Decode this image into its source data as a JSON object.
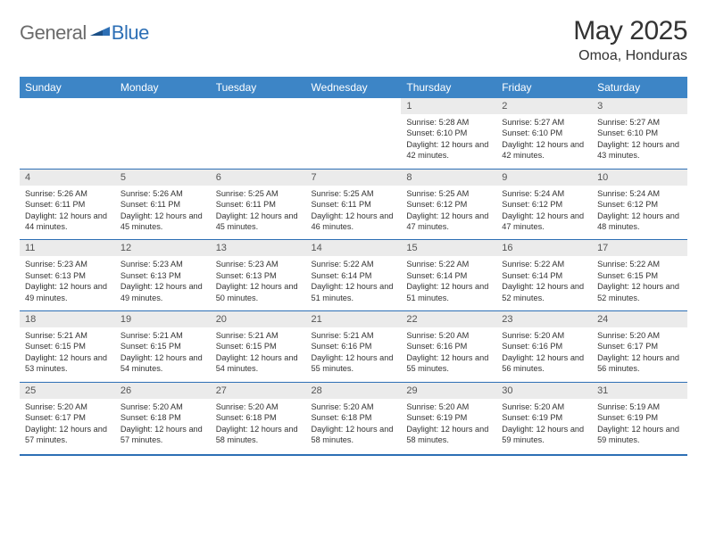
{
  "brand": {
    "part1": "General",
    "part2": "Blue"
  },
  "title": "May 2025",
  "location": "Omoa, Honduras",
  "colors": {
    "header_bg": "#3d85c6",
    "header_text": "#ffffff",
    "border": "#2d6fb5",
    "daynum_bg": "#ebebeb",
    "logo_gray": "#6b6b6b",
    "logo_blue": "#2d6fb5"
  },
  "weekdays": [
    "Sunday",
    "Monday",
    "Tuesday",
    "Wednesday",
    "Thursday",
    "Friday",
    "Saturday"
  ],
  "weeks": [
    [
      {
        "empty": true
      },
      {
        "empty": true
      },
      {
        "empty": true
      },
      {
        "empty": true
      },
      {
        "day": "1",
        "sunrise": "5:28 AM",
        "sunset": "6:10 PM",
        "daylight": "12 hours and 42 minutes."
      },
      {
        "day": "2",
        "sunrise": "5:27 AM",
        "sunset": "6:10 PM",
        "daylight": "12 hours and 42 minutes."
      },
      {
        "day": "3",
        "sunrise": "5:27 AM",
        "sunset": "6:10 PM",
        "daylight": "12 hours and 43 minutes."
      }
    ],
    [
      {
        "day": "4",
        "sunrise": "5:26 AM",
        "sunset": "6:11 PM",
        "daylight": "12 hours and 44 minutes."
      },
      {
        "day": "5",
        "sunrise": "5:26 AM",
        "sunset": "6:11 PM",
        "daylight": "12 hours and 45 minutes."
      },
      {
        "day": "6",
        "sunrise": "5:25 AM",
        "sunset": "6:11 PM",
        "daylight": "12 hours and 45 minutes."
      },
      {
        "day": "7",
        "sunrise": "5:25 AM",
        "sunset": "6:11 PM",
        "daylight": "12 hours and 46 minutes."
      },
      {
        "day": "8",
        "sunrise": "5:25 AM",
        "sunset": "6:12 PM",
        "daylight": "12 hours and 47 minutes."
      },
      {
        "day": "9",
        "sunrise": "5:24 AM",
        "sunset": "6:12 PM",
        "daylight": "12 hours and 47 minutes."
      },
      {
        "day": "10",
        "sunrise": "5:24 AM",
        "sunset": "6:12 PM",
        "daylight": "12 hours and 48 minutes."
      }
    ],
    [
      {
        "day": "11",
        "sunrise": "5:23 AM",
        "sunset": "6:13 PM",
        "daylight": "12 hours and 49 minutes."
      },
      {
        "day": "12",
        "sunrise": "5:23 AM",
        "sunset": "6:13 PM",
        "daylight": "12 hours and 49 minutes."
      },
      {
        "day": "13",
        "sunrise": "5:23 AM",
        "sunset": "6:13 PM",
        "daylight": "12 hours and 50 minutes."
      },
      {
        "day": "14",
        "sunrise": "5:22 AM",
        "sunset": "6:14 PM",
        "daylight": "12 hours and 51 minutes."
      },
      {
        "day": "15",
        "sunrise": "5:22 AM",
        "sunset": "6:14 PM",
        "daylight": "12 hours and 51 minutes."
      },
      {
        "day": "16",
        "sunrise": "5:22 AM",
        "sunset": "6:14 PM",
        "daylight": "12 hours and 52 minutes."
      },
      {
        "day": "17",
        "sunrise": "5:22 AM",
        "sunset": "6:15 PM",
        "daylight": "12 hours and 52 minutes."
      }
    ],
    [
      {
        "day": "18",
        "sunrise": "5:21 AM",
        "sunset": "6:15 PM",
        "daylight": "12 hours and 53 minutes."
      },
      {
        "day": "19",
        "sunrise": "5:21 AM",
        "sunset": "6:15 PM",
        "daylight": "12 hours and 54 minutes."
      },
      {
        "day": "20",
        "sunrise": "5:21 AM",
        "sunset": "6:15 PM",
        "daylight": "12 hours and 54 minutes."
      },
      {
        "day": "21",
        "sunrise": "5:21 AM",
        "sunset": "6:16 PM",
        "daylight": "12 hours and 55 minutes."
      },
      {
        "day": "22",
        "sunrise": "5:20 AM",
        "sunset": "6:16 PM",
        "daylight": "12 hours and 55 minutes."
      },
      {
        "day": "23",
        "sunrise": "5:20 AM",
        "sunset": "6:16 PM",
        "daylight": "12 hours and 56 minutes."
      },
      {
        "day": "24",
        "sunrise": "5:20 AM",
        "sunset": "6:17 PM",
        "daylight": "12 hours and 56 minutes."
      }
    ],
    [
      {
        "day": "25",
        "sunrise": "5:20 AM",
        "sunset": "6:17 PM",
        "daylight": "12 hours and 57 minutes."
      },
      {
        "day": "26",
        "sunrise": "5:20 AM",
        "sunset": "6:18 PM",
        "daylight": "12 hours and 57 minutes."
      },
      {
        "day": "27",
        "sunrise": "5:20 AM",
        "sunset": "6:18 PM",
        "daylight": "12 hours and 58 minutes."
      },
      {
        "day": "28",
        "sunrise": "5:20 AM",
        "sunset": "6:18 PM",
        "daylight": "12 hours and 58 minutes."
      },
      {
        "day": "29",
        "sunrise": "5:20 AM",
        "sunset": "6:19 PM",
        "daylight": "12 hours and 58 minutes."
      },
      {
        "day": "30",
        "sunrise": "5:20 AM",
        "sunset": "6:19 PM",
        "daylight": "12 hours and 59 minutes."
      },
      {
        "day": "31",
        "sunrise": "5:19 AM",
        "sunset": "6:19 PM",
        "daylight": "12 hours and 59 minutes."
      }
    ]
  ],
  "labels": {
    "sunrise": "Sunrise:",
    "sunset": "Sunset:",
    "daylight": "Daylight:"
  }
}
